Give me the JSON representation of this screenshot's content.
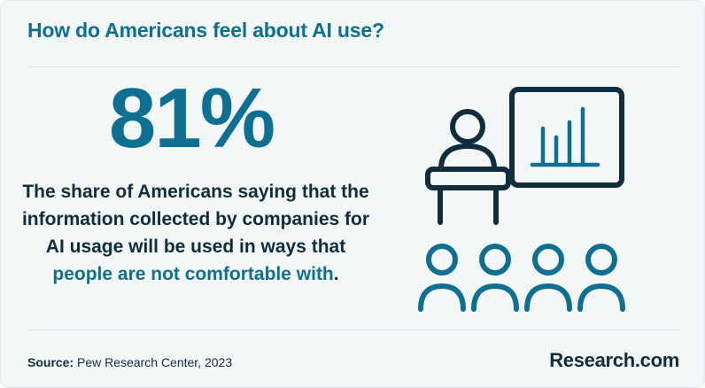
{
  "header": {
    "title": "How do Americans feel about AI use?"
  },
  "stat": {
    "value": "81%"
  },
  "description": {
    "text": "The share of Americans saying that the information collected by companies for AI usage will be used in ways that ",
    "highlight": "people are not comfortable with",
    "end": "."
  },
  "footer": {
    "source_label": "Source:",
    "source_text": " Pew Research Center, 2023",
    "brand": "Research.com"
  },
  "colors": {
    "accent": "#0d7092",
    "dark": "#0f2d3d",
    "background": "#f4f7f8"
  },
  "icons": [
    "presenter-icon",
    "chart-board-icon",
    "audience-icon"
  ]
}
